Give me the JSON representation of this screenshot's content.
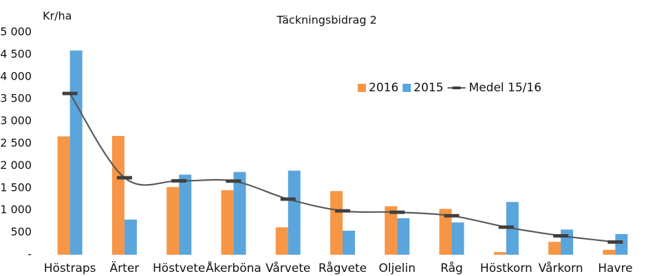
{
  "chart_data": {
    "type": "bar_line",
    "title": "Täckningsbidrag 2",
    "ylabel": "Kr/ha",
    "categories": [
      "Höstraps",
      "Ärter",
      "Höstvete",
      "Åkerböna",
      "Vårvete",
      "Rågvete",
      "Oljelin",
      "Råg",
      "Höstkorn",
      "Vårkorn",
      "Havre"
    ],
    "series": [
      {
        "name": "2016",
        "type": "bar",
        "color": "#f79646",
        "values": [
          2660,
          2670,
          1520,
          1450,
          615,
          1430,
          1090,
          1030,
          60,
          290,
          110
        ]
      },
      {
        "name": "2015",
        "type": "bar",
        "color": "#5aa5dc",
        "values": [
          4590,
          790,
          1800,
          1860,
          1890,
          540,
          820,
          725,
          1185,
          565,
          465
        ]
      },
      {
        "name": "Medel 15/16",
        "type": "line",
        "color": "#595959",
        "values": [
          3625,
          1730,
          1660,
          1655,
          1250,
          985,
          955,
          875,
          620,
          425,
          285
        ]
      }
    ],
    "ylim": [
      0,
      5000
    ],
    "yticks": [
      {
        "value": 0,
        "label": "-"
      },
      500,
      {
        "value": 1000,
        "label": "1 000"
      },
      {
        "value": 1500,
        "label": "1 500"
      },
      {
        "value": 2000,
        "label": "2 000"
      },
      {
        "value": 2500,
        "label": "2 500"
      },
      {
        "value": 3000,
        "label": "3 000"
      },
      {
        "value": 3500,
        "label": "3 500"
      },
      {
        "value": 4000,
        "label": "4 000"
      },
      {
        "value": 4500,
        "label": "4 500"
      },
      {
        "value": 5000,
        "label": "5 000"
      }
    ],
    "grid": false,
    "legend": "upper right"
  }
}
